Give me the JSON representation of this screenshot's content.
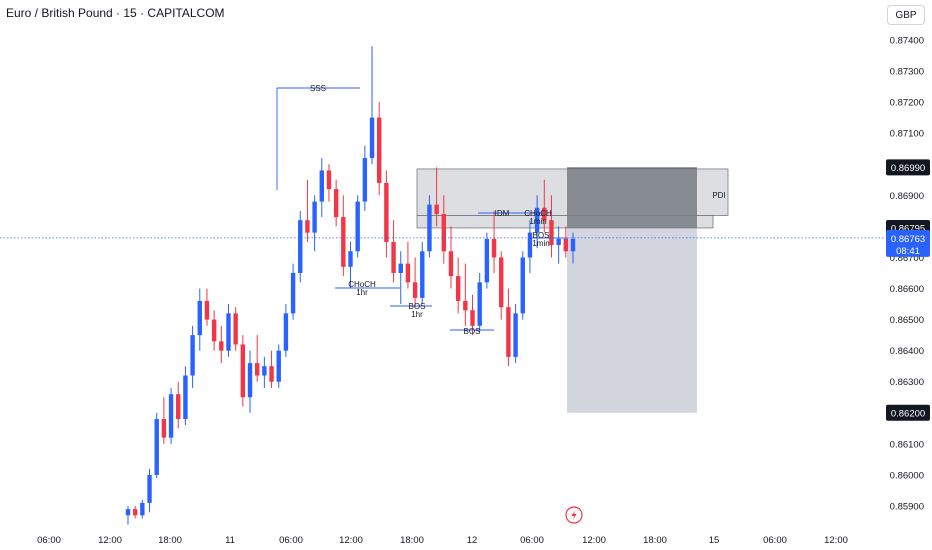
{
  "header": {
    "title": "Euro / British Pound · 15 · CAPITALCOM",
    "currency": "GBP"
  },
  "colors": {
    "up": "#2962ff",
    "down": "#f23645",
    "zone_fill": "#b2b5be",
    "zone_border": "#787b86",
    "target_box": "#d1d4dc",
    "stop_box": "#4a4d55",
    "current_tag": "#2962ff",
    "level_tag": "#131722"
  },
  "chart_data": {
    "type": "candlestick",
    "y_axis": {
      "range": [
        0.8588,
        0.8748
      ],
      "ticks": [
        "0.87400",
        "0.87300",
        "0.87200",
        "0.87100",
        "0.87000",
        "0.86900",
        "0.86800",
        "0.86700",
        "0.86600",
        "0.86500",
        "0.86400",
        "0.86300",
        "0.86200",
        "0.86100",
        "0.86000",
        "0.85900"
      ]
    },
    "x_axis": {
      "ticks": [
        "06:00",
        "12:00",
        "18:00",
        "11",
        "06:00",
        "12:00",
        "18:00",
        "12",
        "06:00",
        "12:00",
        "18:00",
        "15",
        "06:00",
        "12:00"
      ]
    },
    "price_tags": [
      {
        "label": "0.86990",
        "value": 0.8699,
        "style": "level"
      },
      {
        "label": "0.86795",
        "value": 0.86795,
        "style": "level"
      },
      {
        "label": "0.86763",
        "sub": "08:41",
        "value": 0.86763,
        "style": "current"
      },
      {
        "label": "0.86200",
        "value": 0.862,
        "style": "level"
      }
    ],
    "current_price": 0.86763,
    "annotations": [
      {
        "text": "SSS"
      },
      {
        "text": "CHoCH"
      },
      {
        "text": "1hr"
      },
      {
        "text": "BOS"
      },
      {
        "text": "1hr"
      },
      {
        "text": "BOS"
      },
      {
        "text": "IDM"
      },
      {
        "text": "CHoCH"
      },
      {
        "text": "1min"
      },
      {
        "text": "BOS"
      },
      {
        "text": "1min"
      },
      {
        "text": "PDI"
      }
    ],
    "zone": {
      "label": "PDI",
      "top": 0.86985,
      "bottom": 0.86835
    },
    "position": {
      "entry": 0.86795,
      "stop": 0.8699,
      "target": 0.862
    },
    "ohlc": [
      [
        0.8587,
        0.859,
        0.8584,
        0.8589
      ],
      [
        0.8589,
        0.859,
        0.8586,
        0.8587
      ],
      [
        0.8587,
        0.8592,
        0.8586,
        0.8591
      ],
      [
        0.8591,
        0.8602,
        0.8588,
        0.86
      ],
      [
        0.86,
        0.862,
        0.8599,
        0.8618
      ],
      [
        0.8618,
        0.8625,
        0.861,
        0.8612
      ],
      [
        0.8612,
        0.8628,
        0.861,
        0.8626
      ],
      [
        0.8626,
        0.863,
        0.8615,
        0.8618
      ],
      [
        0.8618,
        0.8635,
        0.8616,
        0.8632
      ],
      [
        0.8632,
        0.8648,
        0.8628,
        0.8645
      ],
      [
        0.8645,
        0.866,
        0.864,
        0.8656
      ],
      [
        0.8656,
        0.866,
        0.8648,
        0.865
      ],
      [
        0.865,
        0.8653,
        0.864,
        0.8643
      ],
      [
        0.8643,
        0.8648,
        0.8636,
        0.864
      ],
      [
        0.864,
        0.8655,
        0.8638,
        0.8652
      ],
      [
        0.8652,
        0.8654,
        0.864,
        0.8642
      ],
      [
        0.8642,
        0.8645,
        0.8622,
        0.8625
      ],
      [
        0.8625,
        0.864,
        0.862,
        0.8636
      ],
      [
        0.8636,
        0.8645,
        0.863,
        0.8632
      ],
      [
        0.8632,
        0.8638,
        0.8628,
        0.8635
      ],
      [
        0.8635,
        0.864,
        0.8628,
        0.863
      ],
      [
        0.863,
        0.8642,
        0.8628,
        0.864
      ],
      [
        0.864,
        0.8655,
        0.8638,
        0.8652
      ],
      [
        0.8652,
        0.8668,
        0.865,
        0.8665
      ],
      [
        0.8665,
        0.8685,
        0.8662,
        0.8682
      ],
      [
        0.8682,
        0.8695,
        0.8675,
        0.8678
      ],
      [
        0.8678,
        0.869,
        0.8672,
        0.8688
      ],
      [
        0.8688,
        0.8702,
        0.8683,
        0.8698
      ],
      [
        0.8698,
        0.87,
        0.8688,
        0.8692
      ],
      [
        0.8692,
        0.8695,
        0.868,
        0.8683
      ],
      [
        0.8683,
        0.869,
        0.8664,
        0.8667
      ],
      [
        0.8667,
        0.8675,
        0.866,
        0.8672
      ],
      [
        0.8672,
        0.869,
        0.867,
        0.8688
      ],
      [
        0.8688,
        0.8706,
        0.8685,
        0.8702
      ],
      [
        0.8702,
        0.8738,
        0.87,
        0.8715
      ],
      [
        0.8715,
        0.872,
        0.869,
        0.8694
      ],
      [
        0.8694,
        0.8698,
        0.867,
        0.8675
      ],
      [
        0.8675,
        0.8682,
        0.8662,
        0.8665
      ],
      [
        0.8665,
        0.8672,
        0.8655,
        0.8668
      ],
      [
        0.8668,
        0.8675,
        0.866,
        0.8662
      ],
      [
        0.8662,
        0.867,
        0.8654,
        0.8657
      ],
      [
        0.8657,
        0.8675,
        0.8655,
        0.8672
      ],
      [
        0.8672,
        0.869,
        0.867,
        0.8687
      ],
      [
        0.8687,
        0.8699,
        0.868,
        0.8684
      ],
      [
        0.8684,
        0.869,
        0.8668,
        0.8672
      ],
      [
        0.8672,
        0.868,
        0.866,
        0.8664
      ],
      [
        0.8664,
        0.867,
        0.8652,
        0.8656
      ],
      [
        0.8656,
        0.8668,
        0.8648,
        0.8653
      ],
      [
        0.8653,
        0.8658,
        0.8645,
        0.8648
      ],
      [
        0.8648,
        0.8665,
        0.8646,
        0.8662
      ],
      [
        0.8662,
        0.8678,
        0.866,
        0.8676
      ],
      [
        0.8676,
        0.8685,
        0.8665,
        0.867
      ],
      [
        0.867,
        0.8672,
        0.865,
        0.8654
      ],
      [
        0.8654,
        0.866,
        0.8635,
        0.8638
      ],
      [
        0.8638,
        0.8655,
        0.8636,
        0.8652
      ],
      [
        0.8652,
        0.8672,
        0.865,
        0.867
      ],
      [
        0.867,
        0.8682,
        0.8665,
        0.8678
      ],
      [
        0.8678,
        0.869,
        0.8673,
        0.8686
      ],
      [
        0.8686,
        0.8695,
        0.8678,
        0.8682
      ],
      [
        0.8682,
        0.869,
        0.867,
        0.8674
      ],
      [
        0.8674,
        0.868,
        0.8668,
        0.8676
      ],
      [
        0.8676,
        0.868,
        0.867,
        0.8672
      ],
      [
        0.8672,
        0.8678,
        0.8668,
        0.8676
      ]
    ]
  }
}
